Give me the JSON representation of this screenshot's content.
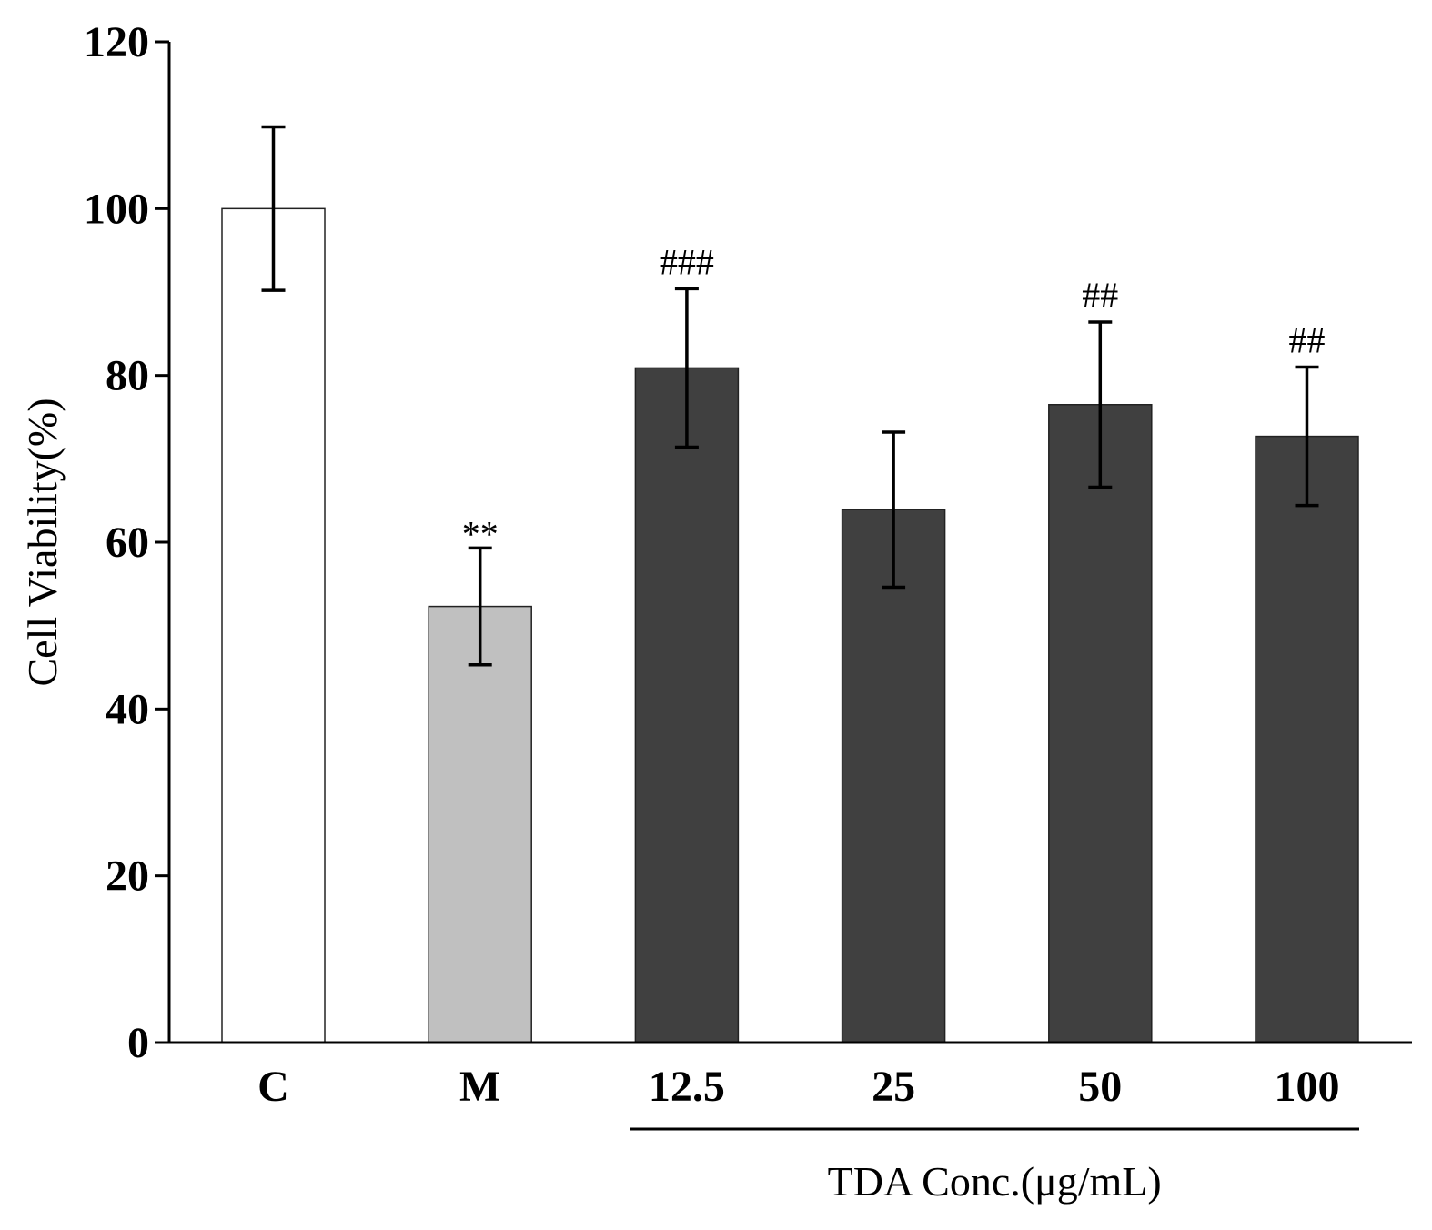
{
  "chart_data": {
    "type": "bar",
    "title": "",
    "xlabel": "",
    "ylabel": "Cell Viability(%)",
    "ylim": [
      0,
      120
    ],
    "yticks": [
      0,
      20,
      40,
      60,
      80,
      100,
      120
    ],
    "grid": false,
    "legend": "none",
    "categories": [
      "C",
      "M",
      "12.5",
      "25",
      "50",
      "100"
    ],
    "values": [
      100,
      52.3,
      80.9,
      63.9,
      76.5,
      72.7
    ],
    "errors": [
      9.8,
      7.0,
      9.5,
      9.3,
      9.9,
      8.3
    ],
    "bar_colors": [
      "#ffffff",
      "#c0c0c0",
      "#404040",
      "#404040",
      "#404040",
      "#404040"
    ],
    "annotations": [
      "",
      "**",
      "###",
      "",
      "##",
      "##"
    ],
    "group_label": {
      "text": "TDA Conc.(μg/mL)",
      "from_category": "12.5",
      "to_category": "100"
    }
  }
}
